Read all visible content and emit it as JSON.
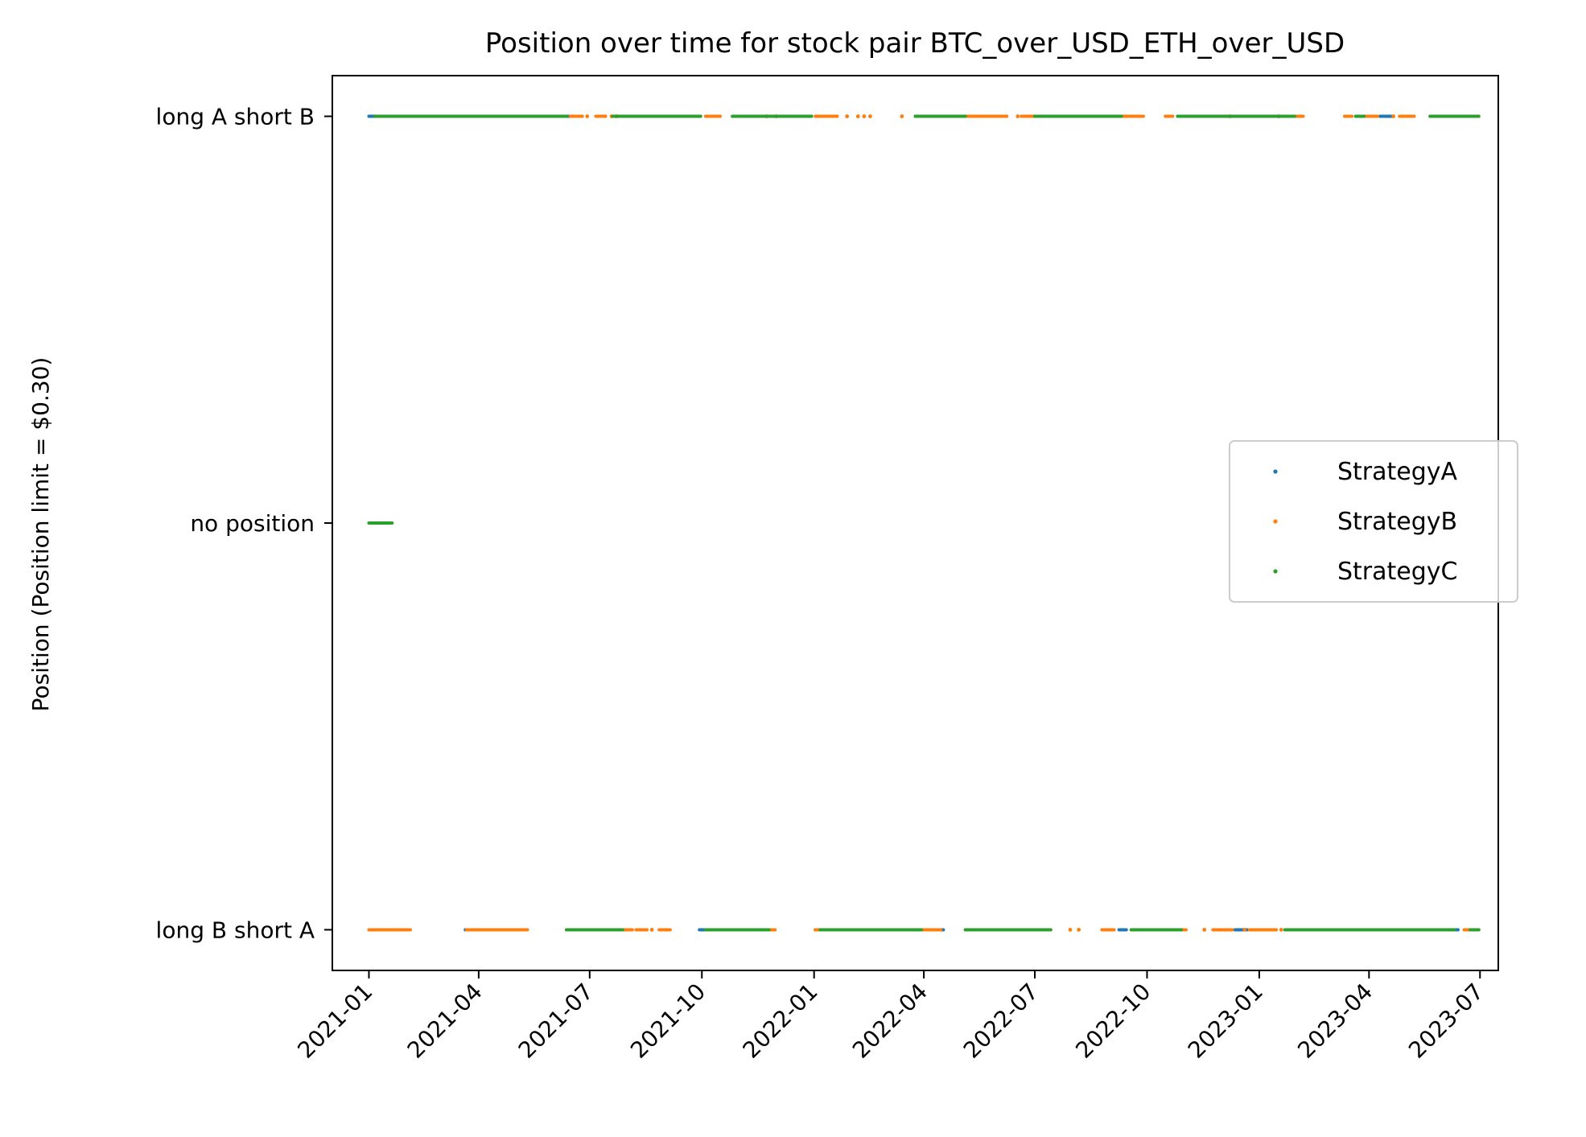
{
  "chart_data": {
    "type": "scatter",
    "title": "Position over time for stock pair BTC_over_USD_ETH_over_USD",
    "xlabel": "",
    "ylabel": "Position (Position limit = $0.30)",
    "x_ticks": [
      "2021-01",
      "2021-04",
      "2021-07",
      "2021-10",
      "2022-01",
      "2022-04",
      "2022-07",
      "2022-10",
      "2023-01",
      "2023-04",
      "2023-07"
    ],
    "xlim": [
      "2020-12-02",
      "2023-07-16"
    ],
    "y_ticks": [
      {
        "value": 1,
        "label": "long A short B"
      },
      {
        "value": 0,
        "label": "no position"
      },
      {
        "value": -1,
        "label": "long B short A"
      }
    ],
    "ylim": [
      -1.1,
      1.1
    ],
    "grid": false,
    "legend": {
      "placement": "center-right"
    },
    "series": [
      {
        "name": "StrategyA",
        "color": "#1f77b4",
        "segments": [
          {
            "start": "2021-01-01",
            "end": "2021-01-20",
            "position": 1
          },
          {
            "start": "2021-02-18",
            "end": "2021-02-23",
            "position": 1
          },
          {
            "start": "2021-06-12",
            "end": "2021-06-16",
            "position": 1
          },
          {
            "start": "2021-10-28",
            "end": "2021-11-05",
            "position": 1
          },
          {
            "start": "2021-11-05",
            "end": "2021-11-13",
            "position": 1
          },
          {
            "start": "2022-03-25",
            "end": "2022-04-16",
            "position": 1
          },
          {
            "start": "2022-06-29",
            "end": "2022-07-03",
            "position": 1
          },
          {
            "start": "2022-10-30",
            "end": "2022-11-05",
            "position": 1
          },
          {
            "start": "2023-01-29",
            "end": "2023-02-03",
            "position": 1
          },
          {
            "start": "2023-04-10",
            "end": "2023-04-20",
            "position": 1
          },
          {
            "start": "2023-05-22",
            "end": "2023-06-01",
            "position": 1
          },
          {
            "start": "2023-06-20",
            "end": "2023-06-28",
            "position": 1
          },
          {
            "start": "2021-03-21",
            "end": "2021-03-27",
            "position": -1
          },
          {
            "start": "2021-09-29",
            "end": "2021-10-04",
            "position": -1
          },
          {
            "start": "2022-01-02",
            "end": "2022-01-06",
            "position": -1
          },
          {
            "start": "2022-04-10",
            "end": "2022-04-17",
            "position": -1
          },
          {
            "start": "2022-09-08",
            "end": "2022-09-14",
            "position": -1
          },
          {
            "start": "2022-12-12",
            "end": "2022-12-22",
            "position": -1
          },
          {
            "start": "2023-01-08",
            "end": "2023-01-13",
            "position": -1
          },
          {
            "start": "2023-06-05",
            "end": "2023-06-13",
            "position": -1
          }
        ],
        "points": []
      },
      {
        "name": "StrategyB",
        "color": "#ff7f0e",
        "segments": [
          {
            "start": "2021-06-15",
            "end": "2021-06-25",
            "position": 1
          },
          {
            "start": "2021-07-06",
            "end": "2021-07-14",
            "position": 1
          },
          {
            "start": "2021-10-04",
            "end": "2021-10-16",
            "position": 1
          },
          {
            "start": "2021-11-05",
            "end": "2021-11-12",
            "position": 1
          },
          {
            "start": "2022-01-02",
            "end": "2022-01-20",
            "position": 1
          },
          {
            "start": "2022-05-05",
            "end": "2022-06-08",
            "position": 1
          },
          {
            "start": "2022-06-20",
            "end": "2022-06-30",
            "position": 1
          },
          {
            "start": "2022-09-08",
            "end": "2022-09-28",
            "position": 1
          },
          {
            "start": "2022-10-16",
            "end": "2022-10-22",
            "position": 1
          },
          {
            "start": "2022-12-14",
            "end": "2022-12-20",
            "position": 1
          },
          {
            "start": "2023-01-26",
            "end": "2023-02-06",
            "position": 1
          },
          {
            "start": "2023-03-12",
            "end": "2023-03-18",
            "position": 1
          },
          {
            "start": "2023-03-26",
            "end": "2023-04-08",
            "position": 1
          },
          {
            "start": "2023-04-26",
            "end": "2023-05-08",
            "position": 1
          },
          {
            "start": "2023-06-20",
            "end": "2023-06-30",
            "position": 1
          },
          {
            "start": "2021-01-01",
            "end": "2021-02-04",
            "position": -1
          },
          {
            "start": "2021-03-22",
            "end": "2021-05-11",
            "position": -1
          },
          {
            "start": "2021-06-12",
            "end": "2021-08-05",
            "position": -1
          },
          {
            "start": "2021-08-08",
            "end": "2021-08-17",
            "position": -1
          },
          {
            "start": "2021-08-27",
            "end": "2021-09-05",
            "position": -1
          },
          {
            "start": "2021-10-20",
            "end": "2021-11-30",
            "position": -1
          },
          {
            "start": "2022-01-02",
            "end": "2022-03-20",
            "position": -1
          },
          {
            "start": "2022-03-28",
            "end": "2022-04-15",
            "position": -1
          },
          {
            "start": "2022-05-05",
            "end": "2022-07-14",
            "position": -1
          },
          {
            "start": "2022-08-25",
            "end": "2022-09-04",
            "position": -1
          },
          {
            "start": "2022-09-18",
            "end": "2022-11-02",
            "position": -1
          },
          {
            "start": "2022-11-24",
            "end": "2022-12-10",
            "position": -1
          },
          {
            "start": "2022-12-24",
            "end": "2023-01-15",
            "position": -1
          },
          {
            "start": "2023-02-18",
            "end": "2023-06-06",
            "position": -1
          },
          {
            "start": "2023-06-18",
            "end": "2023-06-30",
            "position": -1
          }
        ],
        "points": [
          {
            "date": "2021-06-29",
            "position": 1
          },
          {
            "date": "2021-07-19",
            "position": 1
          },
          {
            "date": "2021-07-23",
            "position": 1
          },
          {
            "date": "2021-11-23",
            "position": 1
          },
          {
            "date": "2021-12-01",
            "position": 1
          },
          {
            "date": "2022-01-28",
            "position": 1
          },
          {
            "date": "2022-02-06",
            "position": 1
          },
          {
            "date": "2022-02-11",
            "position": 1
          },
          {
            "date": "2022-02-16",
            "position": 1
          },
          {
            "date": "2022-03-14",
            "position": 1
          },
          {
            "date": "2022-06-17",
            "position": 1
          },
          {
            "date": "2022-12-08",
            "position": 1
          },
          {
            "date": "2023-01-17",
            "position": 1
          },
          {
            "date": "2023-04-21",
            "position": 1
          },
          {
            "date": "2021-08-21",
            "position": -1
          },
          {
            "date": "2022-07-30",
            "position": -1
          },
          {
            "date": "2022-08-06",
            "position": -1
          },
          {
            "date": "2022-11-17",
            "position": -1
          },
          {
            "date": "2022-12-20",
            "position": -1
          },
          {
            "date": "2023-01-19",
            "position": -1
          }
        ]
      },
      {
        "name": "StrategyC",
        "color": "#2ca02c",
        "segments": [
          {
            "start": "2021-01-01",
            "end": "2021-01-20",
            "position": 0
          },
          {
            "start": "2021-01-06",
            "end": "2021-06-12",
            "position": 1
          },
          {
            "start": "2021-07-20",
            "end": "2021-09-30",
            "position": 1
          },
          {
            "start": "2021-10-26",
            "end": "2021-12-30",
            "position": 1
          },
          {
            "start": "2022-03-25",
            "end": "2022-05-05",
            "position": 1
          },
          {
            "start": "2022-07-01",
            "end": "2022-09-10",
            "position": 1
          },
          {
            "start": "2022-10-26",
            "end": "2023-01-30",
            "position": 1
          },
          {
            "start": "2023-03-21",
            "end": "2023-03-28",
            "position": 1
          },
          {
            "start": "2023-05-21",
            "end": "2023-06-30",
            "position": 1
          },
          {
            "start": "2021-06-12",
            "end": "2021-07-28",
            "position": -1
          },
          {
            "start": "2021-10-04",
            "end": "2021-11-25",
            "position": -1
          },
          {
            "start": "2022-01-06",
            "end": "2022-03-30",
            "position": -1
          },
          {
            "start": "2022-05-05",
            "end": "2022-07-14",
            "position": -1
          },
          {
            "start": "2022-09-18",
            "end": "2022-10-29",
            "position": -1
          },
          {
            "start": "2023-01-22",
            "end": "2023-06-10",
            "position": -1
          },
          {
            "start": "2023-06-23",
            "end": "2023-06-30",
            "position": -1
          }
        ],
        "points": []
      }
    ]
  }
}
